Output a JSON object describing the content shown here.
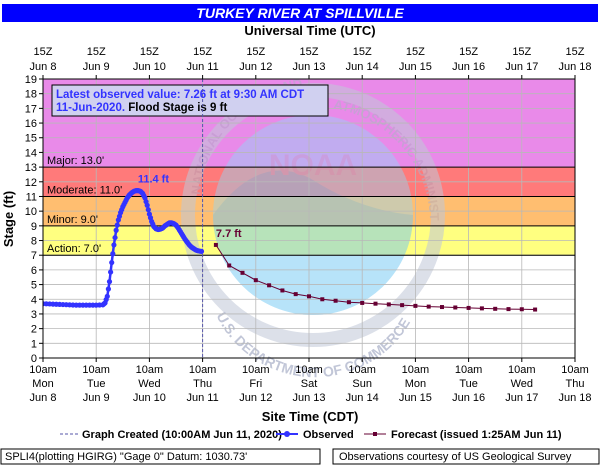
{
  "chart_data": {
    "type": "line",
    "title": "TURKEY RIVER AT SPILLVILLE",
    "top_axis_title": "Universal Time (UTC)",
    "xlabel": "Site Time (CDT)",
    "ylabel": "Stage (ft)",
    "ylim": [
      0,
      19
    ],
    "x_range_hours": [
      0,
      240
    ],
    "yticks": [
      0,
      1,
      2,
      3,
      4,
      5,
      6,
      7,
      8,
      9,
      10,
      11,
      12,
      13,
      14,
      15,
      16,
      17,
      18,
      19
    ],
    "bottom_ticks": [
      {
        "hour": 0,
        "l1": "10am",
        "l2": "Mon",
        "l3": "Jun 8"
      },
      {
        "hour": 24,
        "l1": "10am",
        "l2": "Tue",
        "l3": "Jun 9"
      },
      {
        "hour": 48,
        "l1": "10am",
        "l2": "Wed",
        "l3": "Jun 10"
      },
      {
        "hour": 72,
        "l1": "10am",
        "l2": "Thu",
        "l3": "Jun 11"
      },
      {
        "hour": 96,
        "l1": "10am",
        "l2": "Fri",
        "l3": "Jun 12"
      },
      {
        "hour": 120,
        "l1": "10am",
        "l2": "Sat",
        "l3": "Jun 13"
      },
      {
        "hour": 144,
        "l1": "10am",
        "l2": "Sun",
        "l3": "Jun 14"
      },
      {
        "hour": 168,
        "l1": "10am",
        "l2": "Mon",
        "l3": "Jun 15"
      },
      {
        "hour": 192,
        "l1": "10am",
        "l2": "Tue",
        "l3": "Jun 16"
      },
      {
        "hour": 216,
        "l1": "10am",
        "l2": "Wed",
        "l3": "Jun 17"
      },
      {
        "hour": 240,
        "l1": "10am",
        "l2": "Thu",
        "l3": "Jun 18"
      }
    ],
    "top_ticks": [
      {
        "hour": 0,
        "l1": "15Z",
        "l2": "Jun 8"
      },
      {
        "hour": 24,
        "l1": "15Z",
        "l2": "Jun 9"
      },
      {
        "hour": 48,
        "l1": "15Z",
        "l2": "Jun 10"
      },
      {
        "hour": 72,
        "l1": "15Z",
        "l2": "Jun 11"
      },
      {
        "hour": 96,
        "l1": "15Z",
        "l2": "Jun 12"
      },
      {
        "hour": 120,
        "l1": "15Z",
        "l2": "Jun 13"
      },
      {
        "hour": 144,
        "l1": "15Z",
        "l2": "Jun 14"
      },
      {
        "hour": 168,
        "l1": "15Z",
        "l2": "Jun 15"
      },
      {
        "hour": 192,
        "l1": "15Z",
        "l2": "Jun 16"
      },
      {
        "hour": 216,
        "l1": "15Z",
        "l2": "Jun 17"
      },
      {
        "hour": 240,
        "l1": "15Z",
        "l2": "Jun 18"
      }
    ],
    "flood_categories": [
      {
        "name": "Action",
        "label": "Action: 7.0'",
        "from": 7,
        "to": 9,
        "color": "#ffff80"
      },
      {
        "name": "Minor",
        "label": "Minor: 9.0'",
        "from": 9,
        "to": 11,
        "color": "#ffbe70"
      },
      {
        "name": "Moderate",
        "label": "Moderate: 11.0'",
        "from": 11,
        "to": 13,
        "color": "#ff7a7a"
      },
      {
        "name": "Major",
        "label": "Major: 13.0'",
        "from": 13,
        "to": 19,
        "color": "#e98ae9"
      }
    ],
    "info_box": {
      "line1": "Latest observed value: 7.26 ft at 9:30 AM CDT",
      "line2a": "11-Jun-2020.",
      "line2b": " Flood Stage is 9 ft"
    },
    "graph_created_hour": 72,
    "annotations": [
      {
        "text": "11.4 ft",
        "hour": 50,
        "value": 11.4,
        "color": "#3333ff"
      },
      {
        "text": "7.7 ft",
        "hour": 78,
        "value": 7.7,
        "color": "#660033"
      }
    ],
    "series": [
      {
        "name": "Observed",
        "color": "#3333ff",
        "points": [
          [
            0,
            3.7
          ],
          [
            3,
            3.68
          ],
          [
            6,
            3.66
          ],
          [
            9,
            3.64
          ],
          [
            12,
            3.62
          ],
          [
            15,
            3.6
          ],
          [
            18,
            3.6
          ],
          [
            21,
            3.6
          ],
          [
            24,
            3.6
          ],
          [
            27,
            3.62
          ],
          [
            28,
            3.75
          ],
          [
            29,
            4.2
          ],
          [
            30,
            5.2
          ],
          [
            31,
            6.5
          ],
          [
            32,
            7.7
          ],
          [
            33,
            8.7
          ],
          [
            34,
            9.4
          ],
          [
            35,
            9.9
          ],
          [
            36,
            10.3
          ],
          [
            37,
            10.6
          ],
          [
            38,
            10.9
          ],
          [
            39,
            11.1
          ],
          [
            40,
            11.25
          ],
          [
            41,
            11.35
          ],
          [
            42,
            11.4
          ],
          [
            43,
            11.4
          ],
          [
            44,
            11.35
          ],
          [
            45,
            11.2
          ],
          [
            46,
            10.9
          ],
          [
            47,
            10.4
          ],
          [
            48,
            9.8
          ],
          [
            49,
            9.3
          ],
          [
            50,
            8.95
          ],
          [
            51,
            8.8
          ],
          [
            52,
            8.75
          ],
          [
            53,
            8.78
          ],
          [
            54,
            8.85
          ],
          [
            55,
            9.0
          ],
          [
            56,
            9.1
          ],
          [
            57,
            9.2
          ],
          [
            58,
            9.2
          ],
          [
            59,
            9.15
          ],
          [
            60,
            9.05
          ],
          [
            61,
            8.85
          ],
          [
            62,
            8.6
          ],
          [
            63,
            8.35
          ],
          [
            64,
            8.1
          ],
          [
            65,
            7.9
          ],
          [
            66,
            7.7
          ],
          [
            67,
            7.55
          ],
          [
            68,
            7.45
          ],
          [
            69,
            7.35
          ],
          [
            70,
            7.3
          ],
          [
            71.5,
            7.26
          ]
        ]
      },
      {
        "name": "Forecast",
        "color": "#660033",
        "points": [
          [
            78,
            7.7
          ],
          [
            84,
            6.3
          ],
          [
            90,
            5.8
          ],
          [
            96,
            5.3
          ],
          [
            102,
            4.95
          ],
          [
            108,
            4.6
          ],
          [
            114,
            4.35
          ],
          [
            120,
            4.2
          ],
          [
            126,
            4.0
          ],
          [
            132,
            3.9
          ],
          [
            138,
            3.8
          ],
          [
            144,
            3.75
          ],
          [
            150,
            3.7
          ],
          [
            156,
            3.65
          ],
          [
            162,
            3.6
          ],
          [
            168,
            3.55
          ],
          [
            174,
            3.5
          ],
          [
            180,
            3.47
          ],
          [
            186,
            3.44
          ],
          [
            192,
            3.41
          ],
          [
            198,
            3.38
          ],
          [
            204,
            3.35
          ],
          [
            210,
            3.33
          ],
          [
            216,
            3.32
          ],
          [
            222,
            3.3
          ]
        ]
      }
    ],
    "legend": {
      "created_label": "Graph Created (10:00AM Jun 11, 2020)",
      "observed_label": "Observed",
      "forecast_label": "Forecast (issued 1:25AM Jun 11)"
    }
  },
  "footer": {
    "left": "SPLI4(plotting HGIRG) \"Gage 0\" Datum: 1030.73'",
    "right": "Observations courtesy of US Geological Survey"
  },
  "watermark": {
    "center": "NOAA",
    "ring_left": "NATIONAL OCEANIC AND",
    "ring_right": "ATMOSPHERIC ADMINISTRATION",
    "ring_bottom": "U.S. DEPARTMENT OF COMMERCE"
  },
  "colors": {
    "title_bar": "#0000ff",
    "observed": "#3333ff",
    "forecast": "#660033"
  }
}
